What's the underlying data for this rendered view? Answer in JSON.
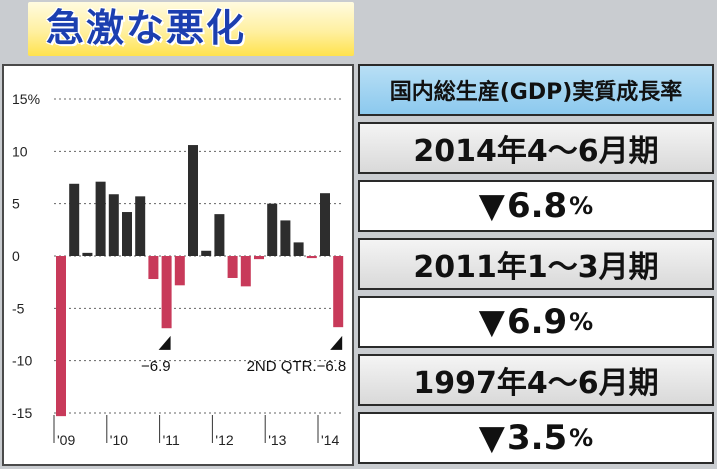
{
  "banner": {
    "title": "急激な悪化"
  },
  "table": {
    "header": "国内総生産(GDP)実質成長率",
    "rows": [
      {
        "period": "2014年4～6月期",
        "marker": "▼",
        "value": "6.8",
        "unit": "%"
      },
      {
        "period": "2011年1～3月期",
        "marker": "▼",
        "value": "6.9",
        "unit": "%"
      },
      {
        "period": "1997年4～6月期",
        "marker": "▼",
        "value": "3.5",
        "unit": "%"
      }
    ]
  },
  "colors": {
    "positive_bar": "#2d2d2d",
    "negative_bar": "#c83a5a",
    "header_bg": "#9fd3f2",
    "banner_text": "#1c3fb0"
  },
  "chart_data": {
    "type": "bar",
    "ylim": [
      -15,
      15
    ],
    "yticks": [
      15,
      10,
      5,
      0,
      -5,
      -10,
      -15
    ],
    "ytick_labels": [
      "15%",
      "10",
      "5",
      "0",
      "-5",
      "-10",
      "-15"
    ],
    "grid": true,
    "x_year_labels": [
      "'09",
      "'10",
      "'11",
      "'12",
      "'13",
      "'14"
    ],
    "quarters_per_year": 4,
    "values": [
      -15.3,
      6.9,
      0.3,
      7.1,
      5.9,
      4.2,
      5.7,
      -2.2,
      -6.9,
      -2.8,
      10.6,
      0.5,
      4.0,
      -2.1,
      -2.9,
      -0.3,
      5.0,
      3.4,
      1.3,
      -0.2,
      6.0,
      -6.8
    ],
    "annotations": [
      {
        "label": "−6.9",
        "index": 8
      },
      {
        "label": "2ND QTR.−6.8",
        "index": 21
      }
    ]
  }
}
